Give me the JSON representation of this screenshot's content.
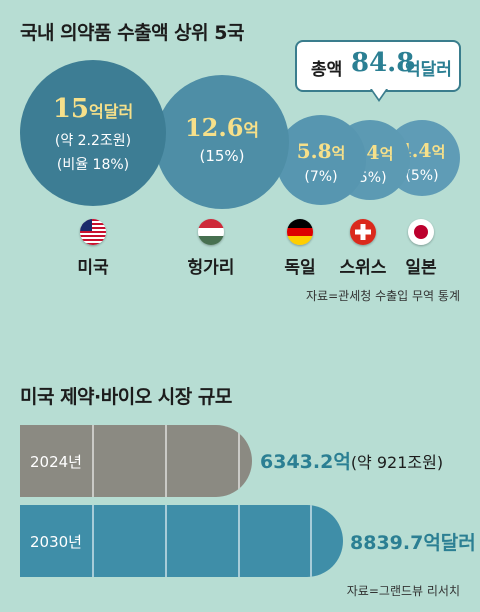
{
  "chart_data": [
    {
      "type": "bubble",
      "title": "국내 의약품 수출액 상위 5국",
      "total_callout": {
        "label": "총액",
        "value": "84.8",
        "unit": "억달러"
      },
      "items": [
        {
          "country": "미국",
          "value": 15,
          "value_text": "15",
          "unit": "억달러",
          "sub1": "(약 2.2조원)",
          "sub2": "(비율 18%)",
          "share": 18
        },
        {
          "country": "헝가리",
          "value": 12.6,
          "value_text": "12.6",
          "unit": "억",
          "sub1": "(15%)",
          "share": 15
        },
        {
          "country": "독일",
          "value": 5.8,
          "value_text": "5.8",
          "unit": "억",
          "sub1": "(7%)",
          "share": 7
        },
        {
          "country": "스위스",
          "value": 4.4,
          "value_text": "4.4",
          "unit": "억",
          "sub1": "(5%)",
          "share": 5
        },
        {
          "country": "일본",
          "value": 4.4,
          "value_text": "4.4",
          "unit": "억",
          "sub1": "(5%)",
          "share": 5
        }
      ],
      "source": "자료=관세청 수출입 무역 통계"
    },
    {
      "type": "bar",
      "title": "미국 제약·바이오 시장 규모",
      "bars": [
        {
          "year": "2024년",
          "value": 6343.2,
          "value_text": "6343.2억",
          "note": "(약 921조원)"
        },
        {
          "year": "2030년",
          "value": 8839.7,
          "value_text": "8839.7억달러",
          "note": ""
        }
      ],
      "source": "자료=그랜드뷰 리서치"
    }
  ],
  "colors": {
    "background": "#b7ddd3",
    "bubble_large": "#3d7d94",
    "bubble_medium": "#4e8ea6",
    "bubble_small": "#5f9cb6",
    "bubble_value_text": "#f6e08a",
    "bar_2024": "#8b8a82",
    "bar_2030": "#3f8ea8",
    "value_text_teal": "#2b7f93"
  },
  "flags": [
    "us-flag",
    "hungary-flag",
    "germany-flag",
    "switzerland-flag",
    "japan-flag"
  ]
}
